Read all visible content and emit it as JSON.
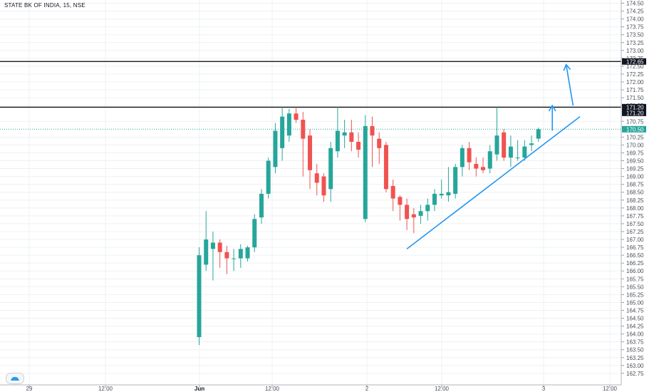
{
  "header": {
    "symbol_title": "STATE BK OF INDIA, 15, NSE"
  },
  "colors": {
    "up": "#26a69a",
    "down": "#ef5350",
    "grid": "#eef0f3",
    "trendline": "#2196f3",
    "level_line": "#000000",
    "current_price_line": "#26a69a",
    "axis_text": "#4a4e59"
  },
  "chart_data": {
    "type": "candlestick",
    "symbol": "STATE BK OF INDIA",
    "interval": "15",
    "exchange": "NSE",
    "ylim": [
      162.5,
      174.6
    ],
    "y_ticks": [
      "174.50",
      "174.25",
      "174.00",
      "173.75",
      "173.50",
      "173.25",
      "173.00",
      "172.75",
      "172.50",
      "172.25",
      "172.00",
      "171.75",
      "171.50",
      "171.25",
      "170.75",
      "170.25",
      "170.00",
      "169.75",
      "169.50",
      "169.25",
      "169.00",
      "168.75",
      "168.50",
      "168.25",
      "168.00",
      "167.75",
      "167.50",
      "167.25",
      "167.00",
      "166.75",
      "166.50",
      "166.25",
      "166.00",
      "165.75",
      "165.50",
      "165.25",
      "165.00",
      "164.75",
      "164.50",
      "164.25",
      "164.00",
      "163.75",
      "163.50",
      "163.25",
      "163.00",
      "162.75"
    ],
    "x_ticks": [
      {
        "label": "29",
        "bold": false
      },
      {
        "label": "12:00",
        "bold": false
      },
      {
        "label": "Jun",
        "bold": true
      },
      {
        "label": "12:00",
        "bold": false
      },
      {
        "label": "2",
        "bold": false
      },
      {
        "label": "12:00",
        "bold": false
      },
      {
        "label": "3",
        "bold": false
      },
      {
        "label": "12:00",
        "bold": false
      }
    ],
    "price_labels": [
      {
        "text": "172.65",
        "value": 172.65,
        "style": "dark"
      },
      {
        "text": "171.20",
        "value": 171.2,
        "style": "dark"
      },
      {
        "text": "171.20",
        "value": 171.2,
        "style": "dark-lower"
      },
      {
        "text": "170.50",
        "value": 170.5,
        "style": "green"
      }
    ],
    "horizontal_levels": [
      172.65,
      171.2
    ],
    "current_price": 170.5,
    "candles": [
      {
        "o": 163.9,
        "h": 166.75,
        "l": 163.65,
        "c": 166.5
      },
      {
        "o": 166.2,
        "h": 167.9,
        "l": 166.0,
        "c": 167.0
      },
      {
        "o": 166.7,
        "h": 167.25,
        "l": 165.7,
        "c": 166.9
      },
      {
        "o": 166.9,
        "h": 167.0,
        "l": 166.1,
        "c": 166.6
      },
      {
        "o": 166.6,
        "h": 166.8,
        "l": 165.9,
        "c": 166.4
      },
      {
        "o": 166.4,
        "h": 166.7,
        "l": 166.0,
        "c": 166.4
      },
      {
        "o": 166.4,
        "h": 166.85,
        "l": 166.1,
        "c": 166.7
      },
      {
        "o": 166.4,
        "h": 166.8,
        "l": 166.3,
        "c": 166.75
      },
      {
        "o": 166.75,
        "h": 167.8,
        "l": 166.6,
        "c": 167.65
      },
      {
        "o": 167.7,
        "h": 168.6,
        "l": 167.5,
        "c": 168.45
      },
      {
        "o": 168.45,
        "h": 169.6,
        "l": 168.3,
        "c": 169.5
      },
      {
        "o": 169.3,
        "h": 170.7,
        "l": 169.1,
        "c": 170.45
      },
      {
        "o": 169.9,
        "h": 171.2,
        "l": 169.5,
        "c": 170.9
      },
      {
        "o": 170.3,
        "h": 171.15,
        "l": 170.1,
        "c": 171.0
      },
      {
        "o": 171.0,
        "h": 171.2,
        "l": 170.7,
        "c": 170.8
      },
      {
        "o": 170.8,
        "h": 171.05,
        "l": 169.0,
        "c": 170.2
      },
      {
        "o": 170.3,
        "h": 170.5,
        "l": 168.6,
        "c": 169.2
      },
      {
        "o": 169.1,
        "h": 169.4,
        "l": 168.4,
        "c": 168.8
      },
      {
        "o": 169.0,
        "h": 169.1,
        "l": 168.2,
        "c": 168.4
      },
      {
        "o": 168.6,
        "h": 170.1,
        "l": 168.2,
        "c": 169.9
      },
      {
        "o": 169.8,
        "h": 171.2,
        "l": 169.6,
        "c": 170.45
      },
      {
        "o": 170.3,
        "h": 170.8,
        "l": 169.9,
        "c": 170.4
      },
      {
        "o": 170.4,
        "h": 170.8,
        "l": 169.8,
        "c": 170.1
      },
      {
        "o": 170.1,
        "h": 170.4,
        "l": 169.6,
        "c": 169.85
      },
      {
        "o": 167.65,
        "h": 170.95,
        "l": 167.55,
        "c": 170.6
      },
      {
        "o": 170.6,
        "h": 170.9,
        "l": 169.3,
        "c": 170.3
      },
      {
        "o": 170.2,
        "h": 170.4,
        "l": 169.4,
        "c": 169.9
      },
      {
        "o": 170.0,
        "h": 170.1,
        "l": 168.5,
        "c": 168.6
      },
      {
        "o": 168.7,
        "h": 168.9,
        "l": 167.9,
        "c": 168.3
      },
      {
        "o": 168.35,
        "h": 168.4,
        "l": 167.6,
        "c": 168.1
      },
      {
        "o": 168.1,
        "h": 168.3,
        "l": 167.3,
        "c": 167.65
      },
      {
        "o": 167.8,
        "h": 168.0,
        "l": 167.2,
        "c": 167.7
      },
      {
        "o": 167.75,
        "h": 168.1,
        "l": 167.5,
        "c": 167.9
      },
      {
        "o": 167.9,
        "h": 168.3,
        "l": 167.6,
        "c": 168.1
      },
      {
        "o": 168.1,
        "h": 168.6,
        "l": 167.9,
        "c": 168.45
      },
      {
        "o": 168.4,
        "h": 168.9,
        "l": 168.3,
        "c": 168.45
      },
      {
        "o": 168.4,
        "h": 169.3,
        "l": 168.2,
        "c": 168.5
      },
      {
        "o": 168.45,
        "h": 169.4,
        "l": 168.3,
        "c": 169.3
      },
      {
        "o": 169.3,
        "h": 170.0,
        "l": 169.0,
        "c": 169.9
      },
      {
        "o": 169.9,
        "h": 170.1,
        "l": 169.2,
        "c": 169.45
      },
      {
        "o": 169.4,
        "h": 169.6,
        "l": 169.0,
        "c": 169.25
      },
      {
        "o": 169.3,
        "h": 169.6,
        "l": 169.1,
        "c": 169.2
      },
      {
        "o": 169.25,
        "h": 170.0,
        "l": 169.1,
        "c": 169.8
      },
      {
        "o": 169.7,
        "h": 171.2,
        "l": 169.5,
        "c": 170.3
      },
      {
        "o": 170.4,
        "h": 170.5,
        "l": 169.5,
        "c": 169.6
      },
      {
        "o": 169.6,
        "h": 170.3,
        "l": 169.3,
        "c": 169.95
      },
      {
        "o": 169.6,
        "h": 170.15,
        "l": 169.5,
        "c": 169.6
      },
      {
        "o": 169.6,
        "h": 170.15,
        "l": 169.5,
        "c": 169.95
      },
      {
        "o": 170.0,
        "h": 170.3,
        "l": 169.8,
        "c": 170.05
      },
      {
        "o": 170.2,
        "h": 170.55,
        "l": 170.1,
        "c": 170.5
      }
    ],
    "drawings": {
      "trendline": {
        "from": {
          "candle": 30,
          "price": 166.7
        },
        "to": {
          "candle": 55,
          "price": 170.9
        }
      },
      "arrows": [
        {
          "name": "small",
          "from": {
            "candle": 51,
            "price": 170.45
          },
          "to": {
            "candle": 51,
            "price": 171.25
          }
        },
        {
          "name": "large",
          "from": {
            "candle": 54,
            "price": 171.25
          },
          "to": {
            "candle": 53,
            "price": 172.55
          }
        }
      ]
    }
  }
}
